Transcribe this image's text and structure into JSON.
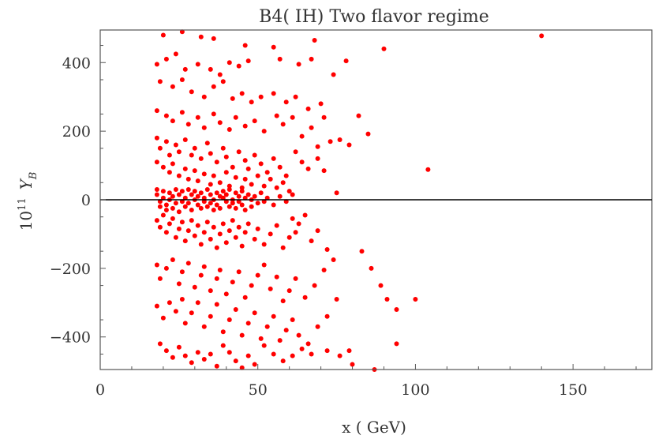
{
  "chart_data": {
    "type": "scatter",
    "title": "B4( IH)  Two flavor regime",
    "xlabel": "x ( GeV)",
    "ylabel_base": "10",
    "ylabel_exp": "11",
    "ylabel_var": "Y",
    "ylabel_sub": "B",
    "xlim": [
      0,
      175
    ],
    "ylim": [
      -495,
      495
    ],
    "xticks": [
      0,
      50,
      100,
      150
    ],
    "yticks": [
      400,
      200,
      0,
      -200,
      -400
    ],
    "ytick_labels": [
      "400",
      "200",
      "0",
      "−200",
      "−400"
    ],
    "xtick_labels": [
      "0",
      "50",
      "100",
      "150"
    ],
    "zero_line": true,
    "grid": false,
    "point_color": "#ff0000",
    "points": [
      [
        20,
        480
      ],
      [
        26,
        490
      ],
      [
        32,
        475
      ],
      [
        36,
        470
      ],
      [
        46,
        450
      ],
      [
        55,
        445
      ],
      [
        68,
        465
      ],
      [
        78,
        405
      ],
      [
        90,
        440
      ],
      [
        140,
        478
      ],
      [
        18,
        395
      ],
      [
        21,
        410
      ],
      [
        24,
        425
      ],
      [
        27,
        380
      ],
      [
        31,
        395
      ],
      [
        35,
        380
      ],
      [
        38,
        365
      ],
      [
        41,
        400
      ],
      [
        44,
        390
      ],
      [
        47,
        405
      ],
      [
        57,
        410
      ],
      [
        63,
        395
      ],
      [
        67,
        410
      ],
      [
        74,
        365
      ],
      [
        85,
        192
      ],
      [
        104,
        88
      ],
      [
        19,
        345
      ],
      [
        23,
        330
      ],
      [
        26,
        350
      ],
      [
        29,
        315
      ],
      [
        33,
        300
      ],
      [
        36,
        330
      ],
      [
        39,
        345
      ],
      [
        42,
        295
      ],
      [
        45,
        310
      ],
      [
        48,
        285
      ],
      [
        51,
        300
      ],
      [
        55,
        310
      ],
      [
        59,
        285
      ],
      [
        62,
        300
      ],
      [
        66,
        265
      ],
      [
        70,
        280
      ],
      [
        82,
        245
      ],
      [
        76,
        175
      ],
      [
        79,
        160
      ],
      [
        18,
        260
      ],
      [
        21,
        245
      ],
      [
        23,
        230
      ],
      [
        26,
        255
      ],
      [
        28,
        220
      ],
      [
        31,
        240
      ],
      [
        33,
        210
      ],
      [
        36,
        250
      ],
      [
        38,
        225
      ],
      [
        41,
        205
      ],
      [
        43,
        240
      ],
      [
        46,
        215
      ],
      [
        49,
        230
      ],
      [
        52,
        200
      ],
      [
        56,
        245
      ],
      [
        58,
        220
      ],
      [
        61,
        240
      ],
      [
        64,
        185
      ],
      [
        67,
        210
      ],
      [
        71,
        240
      ],
      [
        73,
        170
      ],
      [
        69,
        155
      ],
      [
        18,
        180
      ],
      [
        19,
        150
      ],
      [
        21,
        170
      ],
      [
        22,
        130
      ],
      [
        24,
        160
      ],
      [
        25,
        140
      ],
      [
        27,
        175
      ],
      [
        29,
        130
      ],
      [
        30,
        150
      ],
      [
        32,
        120
      ],
      [
        34,
        165
      ],
      [
        35,
        135
      ],
      [
        37,
        110
      ],
      [
        39,
        150
      ],
      [
        40,
        125
      ],
      [
        42,
        95
      ],
      [
        44,
        140
      ],
      [
        46,
        115
      ],
      [
        47,
        90
      ],
      [
        49,
        130
      ],
      [
        51,
        105
      ],
      [
        53,
        80
      ],
      [
        55,
        120
      ],
      [
        57,
        95
      ],
      [
        59,
        70
      ],
      [
        62,
        140
      ],
      [
        64,
        110
      ],
      [
        66,
        90
      ],
      [
        69,
        120
      ],
      [
        71,
        85
      ],
      [
        75,
        20
      ],
      [
        18,
        110
      ],
      [
        20,
        95
      ],
      [
        22,
        80
      ],
      [
        23,
        105
      ],
      [
        25,
        70
      ],
      [
        27,
        90
      ],
      [
        28,
        60
      ],
      [
        30,
        85
      ],
      [
        31,
        55
      ],
      [
        33,
        75
      ],
      [
        35,
        45
      ],
      [
        36,
        70
      ],
      [
        38,
        50
      ],
      [
        40,
        80
      ],
      [
        41,
        40
      ],
      [
        43,
        65
      ],
      [
        45,
        35
      ],
      [
        46,
        60
      ],
      [
        48,
        45
      ],
      [
        50,
        70
      ],
      [
        52,
        40
      ],
      [
        54,
        60
      ],
      [
        56,
        35
      ],
      [
        58,
        50
      ],
      [
        60,
        25
      ],
      [
        61,
        15
      ],
      [
        18,
        30
      ],
      [
        18,
        15
      ],
      [
        19,
        -5
      ],
      [
        19,
        -20
      ],
      [
        20,
        25
      ],
      [
        20,
        5
      ],
      [
        21,
        -15
      ],
      [
        21,
        -30
      ],
      [
        22,
        20
      ],
      [
        22,
        0
      ],
      [
        23,
        -25
      ],
      [
        23,
        10
      ],
      [
        24,
        -10
      ],
      [
        24,
        30
      ],
      [
        25,
        -35
      ],
      [
        25,
        15
      ],
      [
        26,
        -5
      ],
      [
        26,
        25
      ],
      [
        27,
        -20
      ],
      [
        27,
        5
      ],
      [
        28,
        30
      ],
      [
        28,
        -10
      ],
      [
        29,
        -30
      ],
      [
        29,
        15
      ],
      [
        30,
        0
      ],
      [
        30,
        25
      ],
      [
        31,
        -15
      ],
      [
        31,
        10
      ],
      [
        32,
        -25
      ],
      [
        32,
        20
      ],
      [
        33,
        5
      ],
      [
        33,
        -5
      ],
      [
        34,
        30
      ],
      [
        34,
        -20
      ],
      [
        35,
        15
      ],
      [
        35,
        -10
      ],
      [
        36,
        -30
      ],
      [
        36,
        0
      ],
      [
        37,
        20
      ],
      [
        37,
        -15
      ],
      [
        38,
        10
      ],
      [
        38,
        -25
      ],
      [
        39,
        25
      ],
      [
        39,
        5
      ],
      [
        40,
        -5
      ],
      [
        40,
        15
      ],
      [
        41,
        -20
      ],
      [
        41,
        30
      ],
      [
        42,
        0
      ],
      [
        42,
        -10
      ],
      [
        43,
        20
      ],
      [
        43,
        -25
      ],
      [
        44,
        10
      ],
      [
        44,
        -5
      ],
      [
        45,
        25
      ],
      [
        45,
        -15
      ],
      [
        46,
        5
      ],
      [
        46,
        -30
      ],
      [
        47,
        15
      ],
      [
        48,
        -20
      ],
      [
        48,
        0
      ],
      [
        49,
        10
      ],
      [
        50,
        -10
      ],
      [
        51,
        20
      ],
      [
        52,
        -5
      ],
      [
        53,
        5
      ],
      [
        55,
        -15
      ],
      [
        57,
        10
      ],
      [
        59,
        -5
      ],
      [
        18,
        -60
      ],
      [
        19,
        -80
      ],
      [
        20,
        -45
      ],
      [
        21,
        -95
      ],
      [
        22,
        -70
      ],
      [
        23,
        -55
      ],
      [
        24,
        -110
      ],
      [
        25,
        -85
      ],
      [
        26,
        -65
      ],
      [
        27,
        -120
      ],
      [
        28,
        -90
      ],
      [
        29,
        -60
      ],
      [
        30,
        -105
      ],
      [
        31,
        -75
      ],
      [
        32,
        -130
      ],
      [
        33,
        -95
      ],
      [
        34,
        -65
      ],
      [
        35,
        -115
      ],
      [
        36,
        -80
      ],
      [
        37,
        -140
      ],
      [
        38,
        -100
      ],
      [
        39,
        -70
      ],
      [
        40,
        -125
      ],
      [
        41,
        -90
      ],
      [
        42,
        -60
      ],
      [
        43,
        -110
      ],
      [
        44,
        -80
      ],
      [
        45,
        -135
      ],
      [
        46,
        -95
      ],
      [
        47,
        -70
      ],
      [
        49,
        -115
      ],
      [
        50,
        -85
      ],
      [
        52,
        -130
      ],
      [
        54,
        -100
      ],
      [
        56,
        -75
      ],
      [
        58,
        -140
      ],
      [
        60,
        -110
      ],
      [
        61,
        -55
      ],
      [
        62,
        -95
      ],
      [
        63,
        -70
      ],
      [
        65,
        -45
      ],
      [
        67,
        -120
      ],
      [
        69,
        -90
      ],
      [
        72,
        -145
      ],
      [
        74,
        -175
      ],
      [
        18,
        -190
      ],
      [
        19,
        -230
      ],
      [
        21,
        -200
      ],
      [
        23,
        -175
      ],
      [
        25,
        -245
      ],
      [
        26,
        -210
      ],
      [
        28,
        -185
      ],
      [
        30,
        -255
      ],
      [
        32,
        -220
      ],
      [
        33,
        -195
      ],
      [
        35,
        -265
      ],
      [
        37,
        -230
      ],
      [
        38,
        -205
      ],
      [
        40,
        -275
      ],
      [
        42,
        -240
      ],
      [
        44,
        -210
      ],
      [
        46,
        -285
      ],
      [
        48,
        -250
      ],
      [
        50,
        -220
      ],
      [
        52,
        -190
      ],
      [
        54,
        -260
      ],
      [
        56,
        -225
      ],
      [
        58,
        -295
      ],
      [
        60,
        -265
      ],
      [
        62,
        -230
      ],
      [
        65,
        -285
      ],
      [
        68,
        -250
      ],
      [
        71,
        -205
      ],
      [
        83,
        -150
      ],
      [
        86,
        -200
      ],
      [
        89,
        -250
      ],
      [
        91,
        -290
      ],
      [
        18,
        -310
      ],
      [
        20,
        -345
      ],
      [
        22,
        -300
      ],
      [
        24,
        -325
      ],
      [
        26,
        -290
      ],
      [
        27,
        -360
      ],
      [
        29,
        -330
      ],
      [
        31,
        -300
      ],
      [
        33,
        -370
      ],
      [
        35,
        -340
      ],
      [
        37,
        -305
      ],
      [
        39,
        -385
      ],
      [
        41,
        -350
      ],
      [
        43,
        -320
      ],
      [
        45,
        -395
      ],
      [
        47,
        -360
      ],
      [
        49,
        -330
      ],
      [
        51,
        -405
      ],
      [
        53,
        -370
      ],
      [
        55,
        -340
      ],
      [
        57,
        -410
      ],
      [
        59,
        -380
      ],
      [
        61,
        -350
      ],
      [
        63,
        -395
      ],
      [
        66,
        -420
      ],
      [
        69,
        -370
      ],
      [
        72,
        -340
      ],
      [
        75,
        -290
      ],
      [
        94,
        -320
      ],
      [
        100,
        -290
      ],
      [
        19,
        -420
      ],
      [
        21,
        -440
      ],
      [
        23,
        -460
      ],
      [
        25,
        -430
      ],
      [
        27,
        -455
      ],
      [
        29,
        -475
      ],
      [
        31,
        -445
      ],
      [
        33,
        -465
      ],
      [
        35,
        -450
      ],
      [
        37,
        -485
      ],
      [
        39,
        -425
      ],
      [
        41,
        -445
      ],
      [
        43,
        -470
      ],
      [
        45,
        -490
      ],
      [
        47,
        -455
      ],
      [
        49,
        -480
      ],
      [
        52,
        -425
      ],
      [
        55,
        -450
      ],
      [
        58,
        -470
      ],
      [
        61,
        -455
      ],
      [
        64,
        -435
      ],
      [
        67,
        -450
      ],
      [
        72,
        -440
      ],
      [
        76,
        -455
      ],
      [
        80,
        -480
      ],
      [
        87,
        -495
      ],
      [
        94,
        -420
      ],
      [
        79,
        -440
      ]
    ]
  }
}
